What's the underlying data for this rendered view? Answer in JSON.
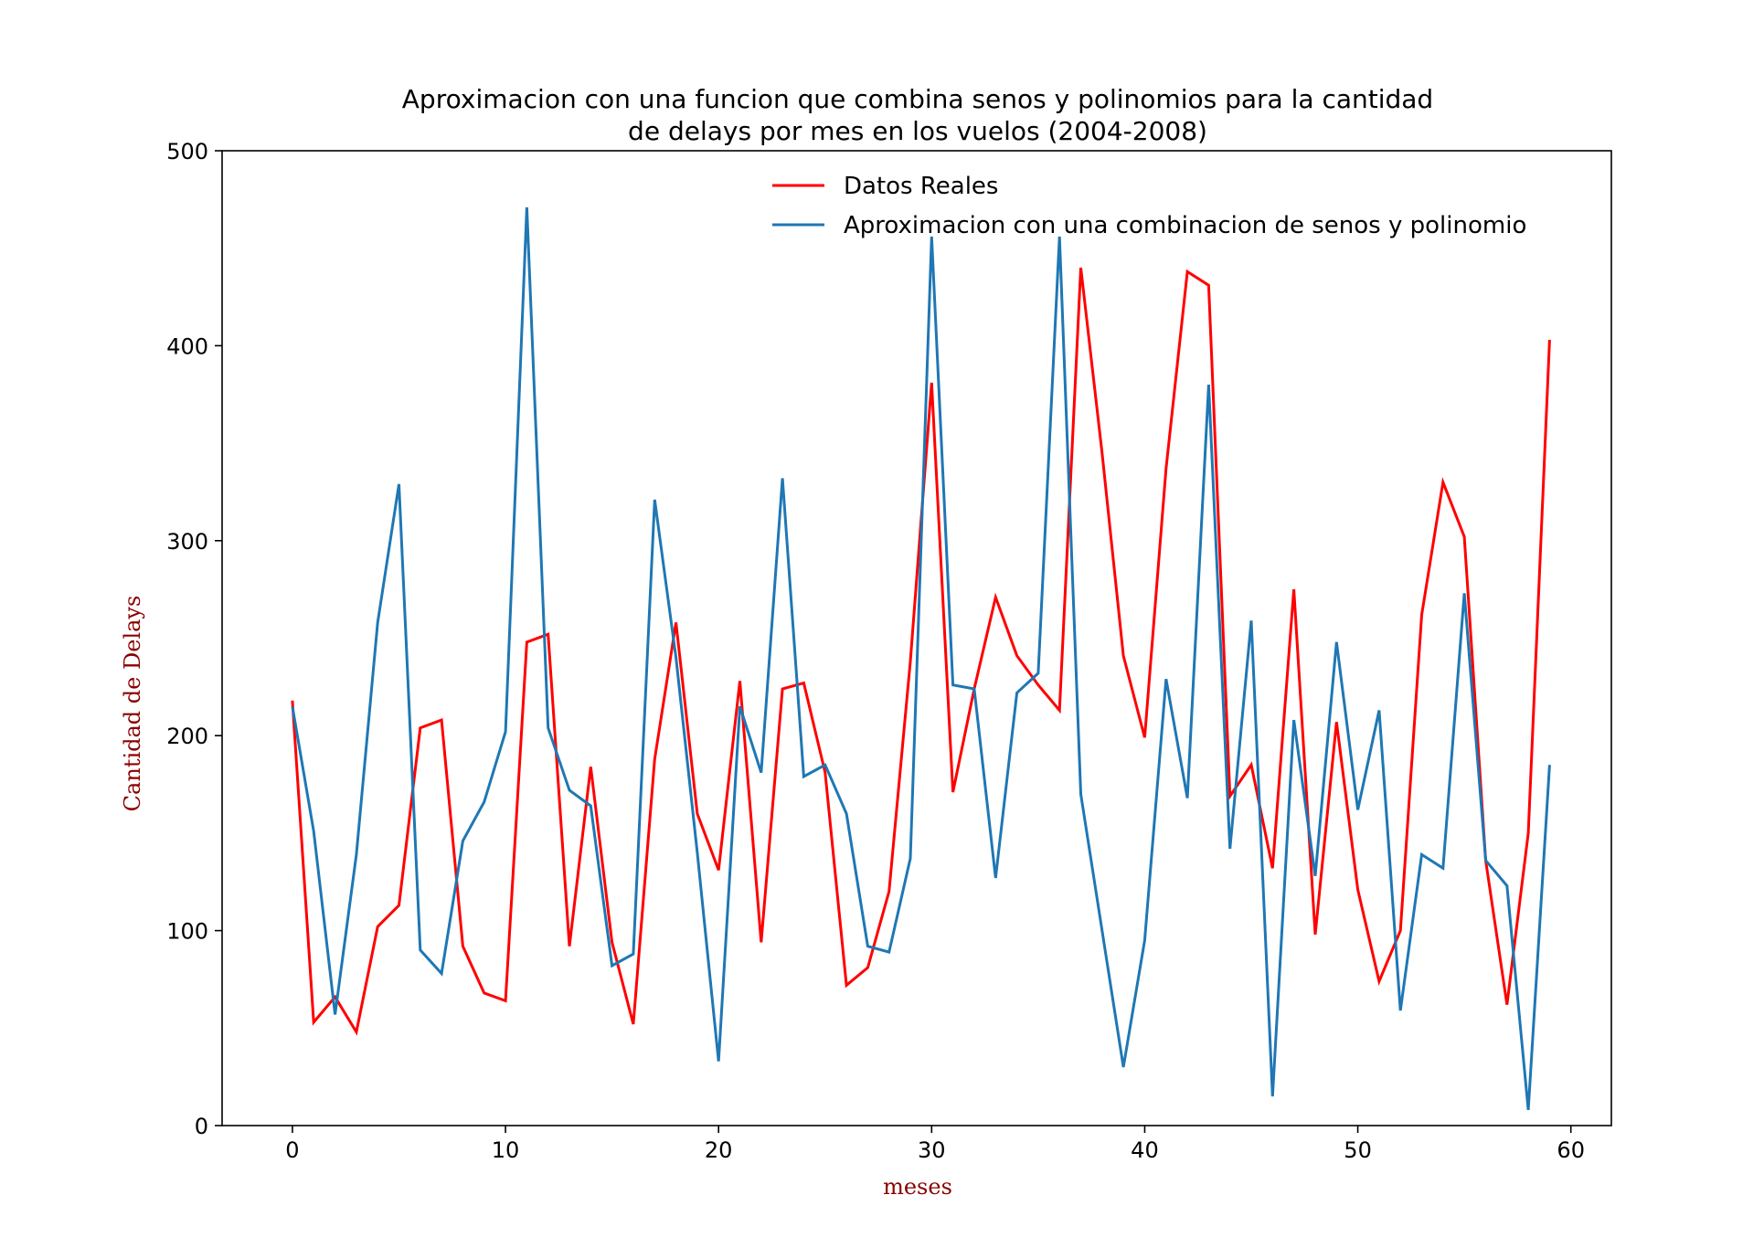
{
  "chart_data": {
    "type": "line",
    "title_line1": "Aproximacion con una funcion que combina senos y polinomios para la cantidad",
    "title_line2": "de delays por mes en los vuelos (2004-2008)",
    "xlabel": "meses",
    "ylabel": "Cantidad de Delays",
    "xlim": [
      -3.3,
      61.9
    ],
    "ylim": [
      0,
      500
    ],
    "xticks": [
      0,
      10,
      20,
      30,
      40,
      50,
      60
    ],
    "yticks": [
      0,
      100,
      200,
      300,
      400,
      500
    ],
    "grid": false,
    "legend_position": "top-right",
    "label_color": "#8b0000",
    "x": [
      0,
      1,
      2,
      3,
      4,
      5,
      6,
      7,
      8,
      9,
      10,
      11,
      12,
      13,
      14,
      15,
      16,
      17,
      18,
      19,
      20,
      21,
      22,
      23,
      24,
      25,
      26,
      27,
      28,
      29,
      30,
      31,
      32,
      33,
      34,
      35,
      36,
      37,
      38,
      39,
      40,
      41,
      42,
      43,
      44,
      45,
      46,
      47,
      48,
      49,
      50,
      51,
      52,
      53,
      54,
      55,
      56,
      57,
      58,
      59
    ],
    "series": [
      {
        "name": "Datos Reales",
        "color": "#ff0000",
        "values": [
          218,
          53,
          66,
          48,
          102,
          113,
          204,
          208,
          92,
          68,
          64,
          248,
          252,
          92,
          184,
          94,
          52,
          188,
          258,
          160,
          131,
          228,
          94,
          224,
          227,
          181,
          72,
          81,
          120,
          238,
          381,
          171,
          224,
          271,
          241,
          226,
          213,
          440,
          345,
          241,
          199,
          337,
          438,
          431,
          169,
          185,
          132,
          275,
          98,
          207,
          121,
          74,
          100,
          262,
          330,
          302,
          136,
          62,
          150,
          403
        ]
      },
      {
        "name": "Aproximacion con una combinacion de senos y polinomio",
        "color": "#1f77b4",
        "values": [
          215,
          151,
          57,
          139,
          258,
          329,
          90,
          78,
          146,
          166,
          202,
          471,
          204,
          172,
          164,
          82,
          88,
          321,
          240,
          140,
          33,
          215,
          181,
          332,
          179,
          185,
          160,
          92,
          89,
          137,
          456,
          226,
          224,
          127,
          222,
          232,
          456,
          170,
          100,
          30,
          95,
          229,
          168,
          380,
          142,
          259,
          15,
          208,
          128,
          248,
          162,
          213,
          59,
          139,
          132,
          273,
          136,
          123,
          8,
          185
        ]
      }
    ]
  }
}
